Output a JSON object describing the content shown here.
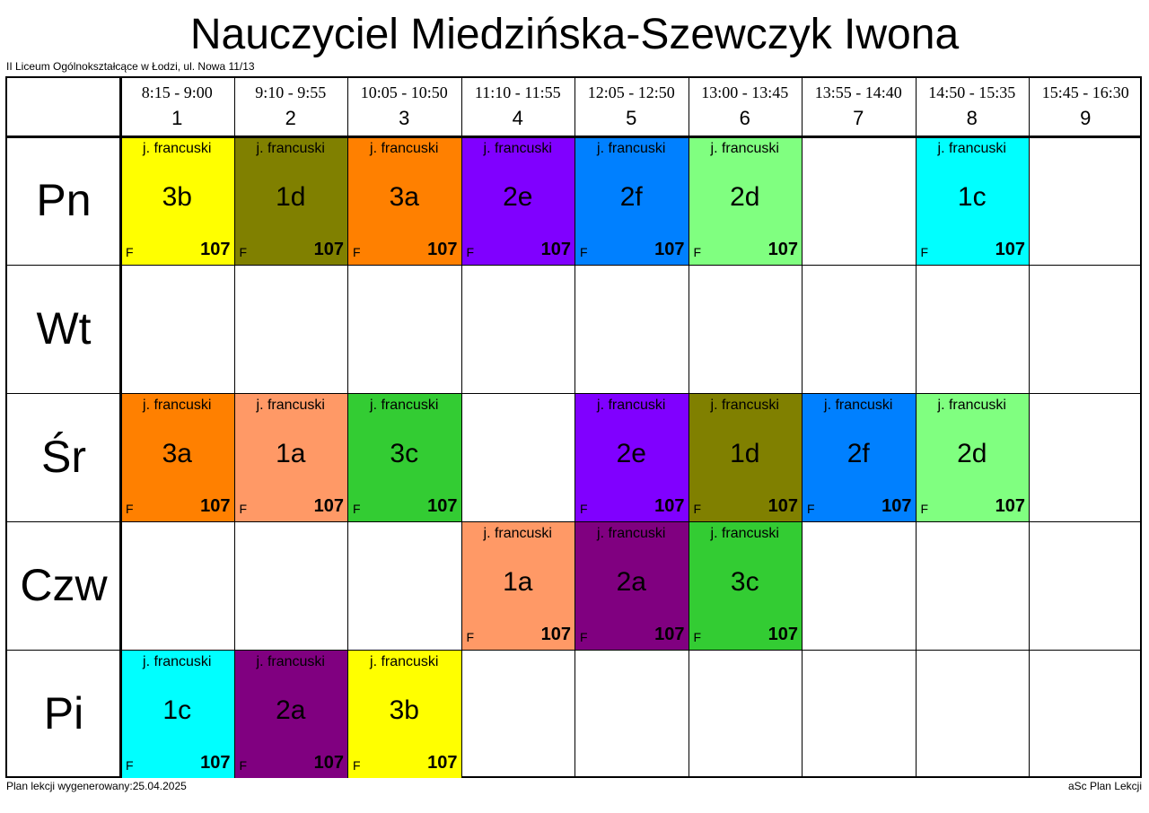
{
  "title": "Nauczyciel Miedzińska-Szewczyk Iwona",
  "school": "II Liceum Ogólnokształcące w Łodzi, ul. Nowa 11/13",
  "footer": {
    "generated": "Plan lekcji wygenerowany:25.04.2025",
    "app": "aSc Plan Lekcji"
  },
  "periods": [
    {
      "time": "8:15 - 9:00",
      "num": "1"
    },
    {
      "time": "9:10 - 9:55",
      "num": "2"
    },
    {
      "time": "10:05 - 10:50",
      "num": "3"
    },
    {
      "time": "11:10 - 11:55",
      "num": "4"
    },
    {
      "time": "12:05 - 12:50",
      "num": "5"
    },
    {
      "time": "13:00 - 13:45",
      "num": "6"
    },
    {
      "time": "13:55 - 14:40",
      "num": "7"
    },
    {
      "time": "14:50 - 15:35",
      "num": "8"
    },
    {
      "time": "15:45 - 16:30",
      "num": "9"
    }
  ],
  "days": [
    "Pn",
    "Wt",
    "Śr",
    "Czw",
    "Pi"
  ],
  "colors": {
    "3b": "#ffff00",
    "1d": "#808000",
    "3a": "#ff8000",
    "2e": "#8000ff",
    "2f": "#0080ff",
    "2d": "#80ff80",
    "1c": "#00ffff",
    "1a": "#ff9966",
    "3c": "#33cc33",
    "2a": "#800080"
  },
  "lessons": [
    {
      "day": 0,
      "period": 0,
      "subject": "j. francuski",
      "class": "3b",
      "teacher": "F",
      "room": "107"
    },
    {
      "day": 0,
      "period": 1,
      "subject": "j. francuski",
      "class": "1d",
      "teacher": "F",
      "room": "107"
    },
    {
      "day": 0,
      "period": 2,
      "subject": "j. francuski",
      "class": "3a",
      "teacher": "F",
      "room": "107"
    },
    {
      "day": 0,
      "period": 3,
      "subject": "j. francuski",
      "class": "2e",
      "teacher": "F",
      "room": "107"
    },
    {
      "day": 0,
      "period": 4,
      "subject": "j. francuski",
      "class": "2f",
      "teacher": "F",
      "room": "107"
    },
    {
      "day": 0,
      "period": 5,
      "subject": "j. francuski",
      "class": "2d",
      "teacher": "F",
      "room": "107"
    },
    {
      "day": 0,
      "period": 7,
      "subject": "j. francuski",
      "class": "1c",
      "teacher": "F",
      "room": "107"
    },
    {
      "day": 2,
      "period": 0,
      "subject": "j. francuski",
      "class": "3a",
      "teacher": "F",
      "room": "107"
    },
    {
      "day": 2,
      "period": 1,
      "subject": "j. francuski",
      "class": "1a",
      "teacher": "F",
      "room": "107"
    },
    {
      "day": 2,
      "period": 2,
      "subject": "j. francuski",
      "class": "3c",
      "teacher": "F",
      "room": "107"
    },
    {
      "day": 2,
      "period": 4,
      "subject": "j. francuski",
      "class": "2e",
      "teacher": "F",
      "room": "107"
    },
    {
      "day": 2,
      "period": 5,
      "subject": "j. francuski",
      "class": "1d",
      "teacher": "F",
      "room": "107"
    },
    {
      "day": 2,
      "period": 6,
      "subject": "j. francuski",
      "class": "2f",
      "teacher": "F",
      "room": "107"
    },
    {
      "day": 2,
      "period": 7,
      "subject": "j. francuski",
      "class": "2d",
      "teacher": "F",
      "room": "107"
    },
    {
      "day": 3,
      "period": 3,
      "subject": "j. francuski",
      "class": "1a",
      "teacher": "F",
      "room": "107"
    },
    {
      "day": 3,
      "period": 4,
      "subject": "j. francuski",
      "class": "2a",
      "teacher": "F",
      "room": "107"
    },
    {
      "day": 3,
      "period": 5,
      "subject": "j. francuski",
      "class": "3c",
      "teacher": "F",
      "room": "107"
    },
    {
      "day": 4,
      "period": 0,
      "subject": "j. francuski",
      "class": "1c",
      "teacher": "F",
      "room": "107"
    },
    {
      "day": 4,
      "period": 1,
      "subject": "j. francuski",
      "class": "2a",
      "teacher": "F",
      "room": "107"
    },
    {
      "day": 4,
      "period": 2,
      "subject": "j. francuski",
      "class": "3b",
      "teacher": "F",
      "room": "107"
    }
  ]
}
